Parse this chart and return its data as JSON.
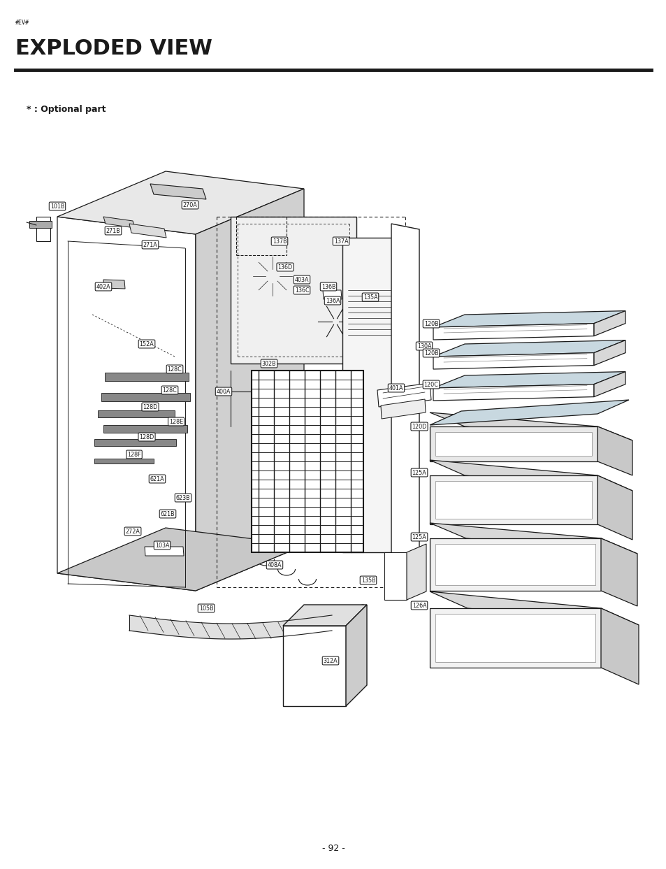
{
  "page_number": "- 92 -",
  "header_tag": "#EV#",
  "title": "EXPLODED VIEW",
  "optional_note": "* : Optional part",
  "bg_color": "#ffffff",
  "title_fontsize": 22,
  "line_color": "#1a1a1a",
  "label_fontsize": 5.8
}
